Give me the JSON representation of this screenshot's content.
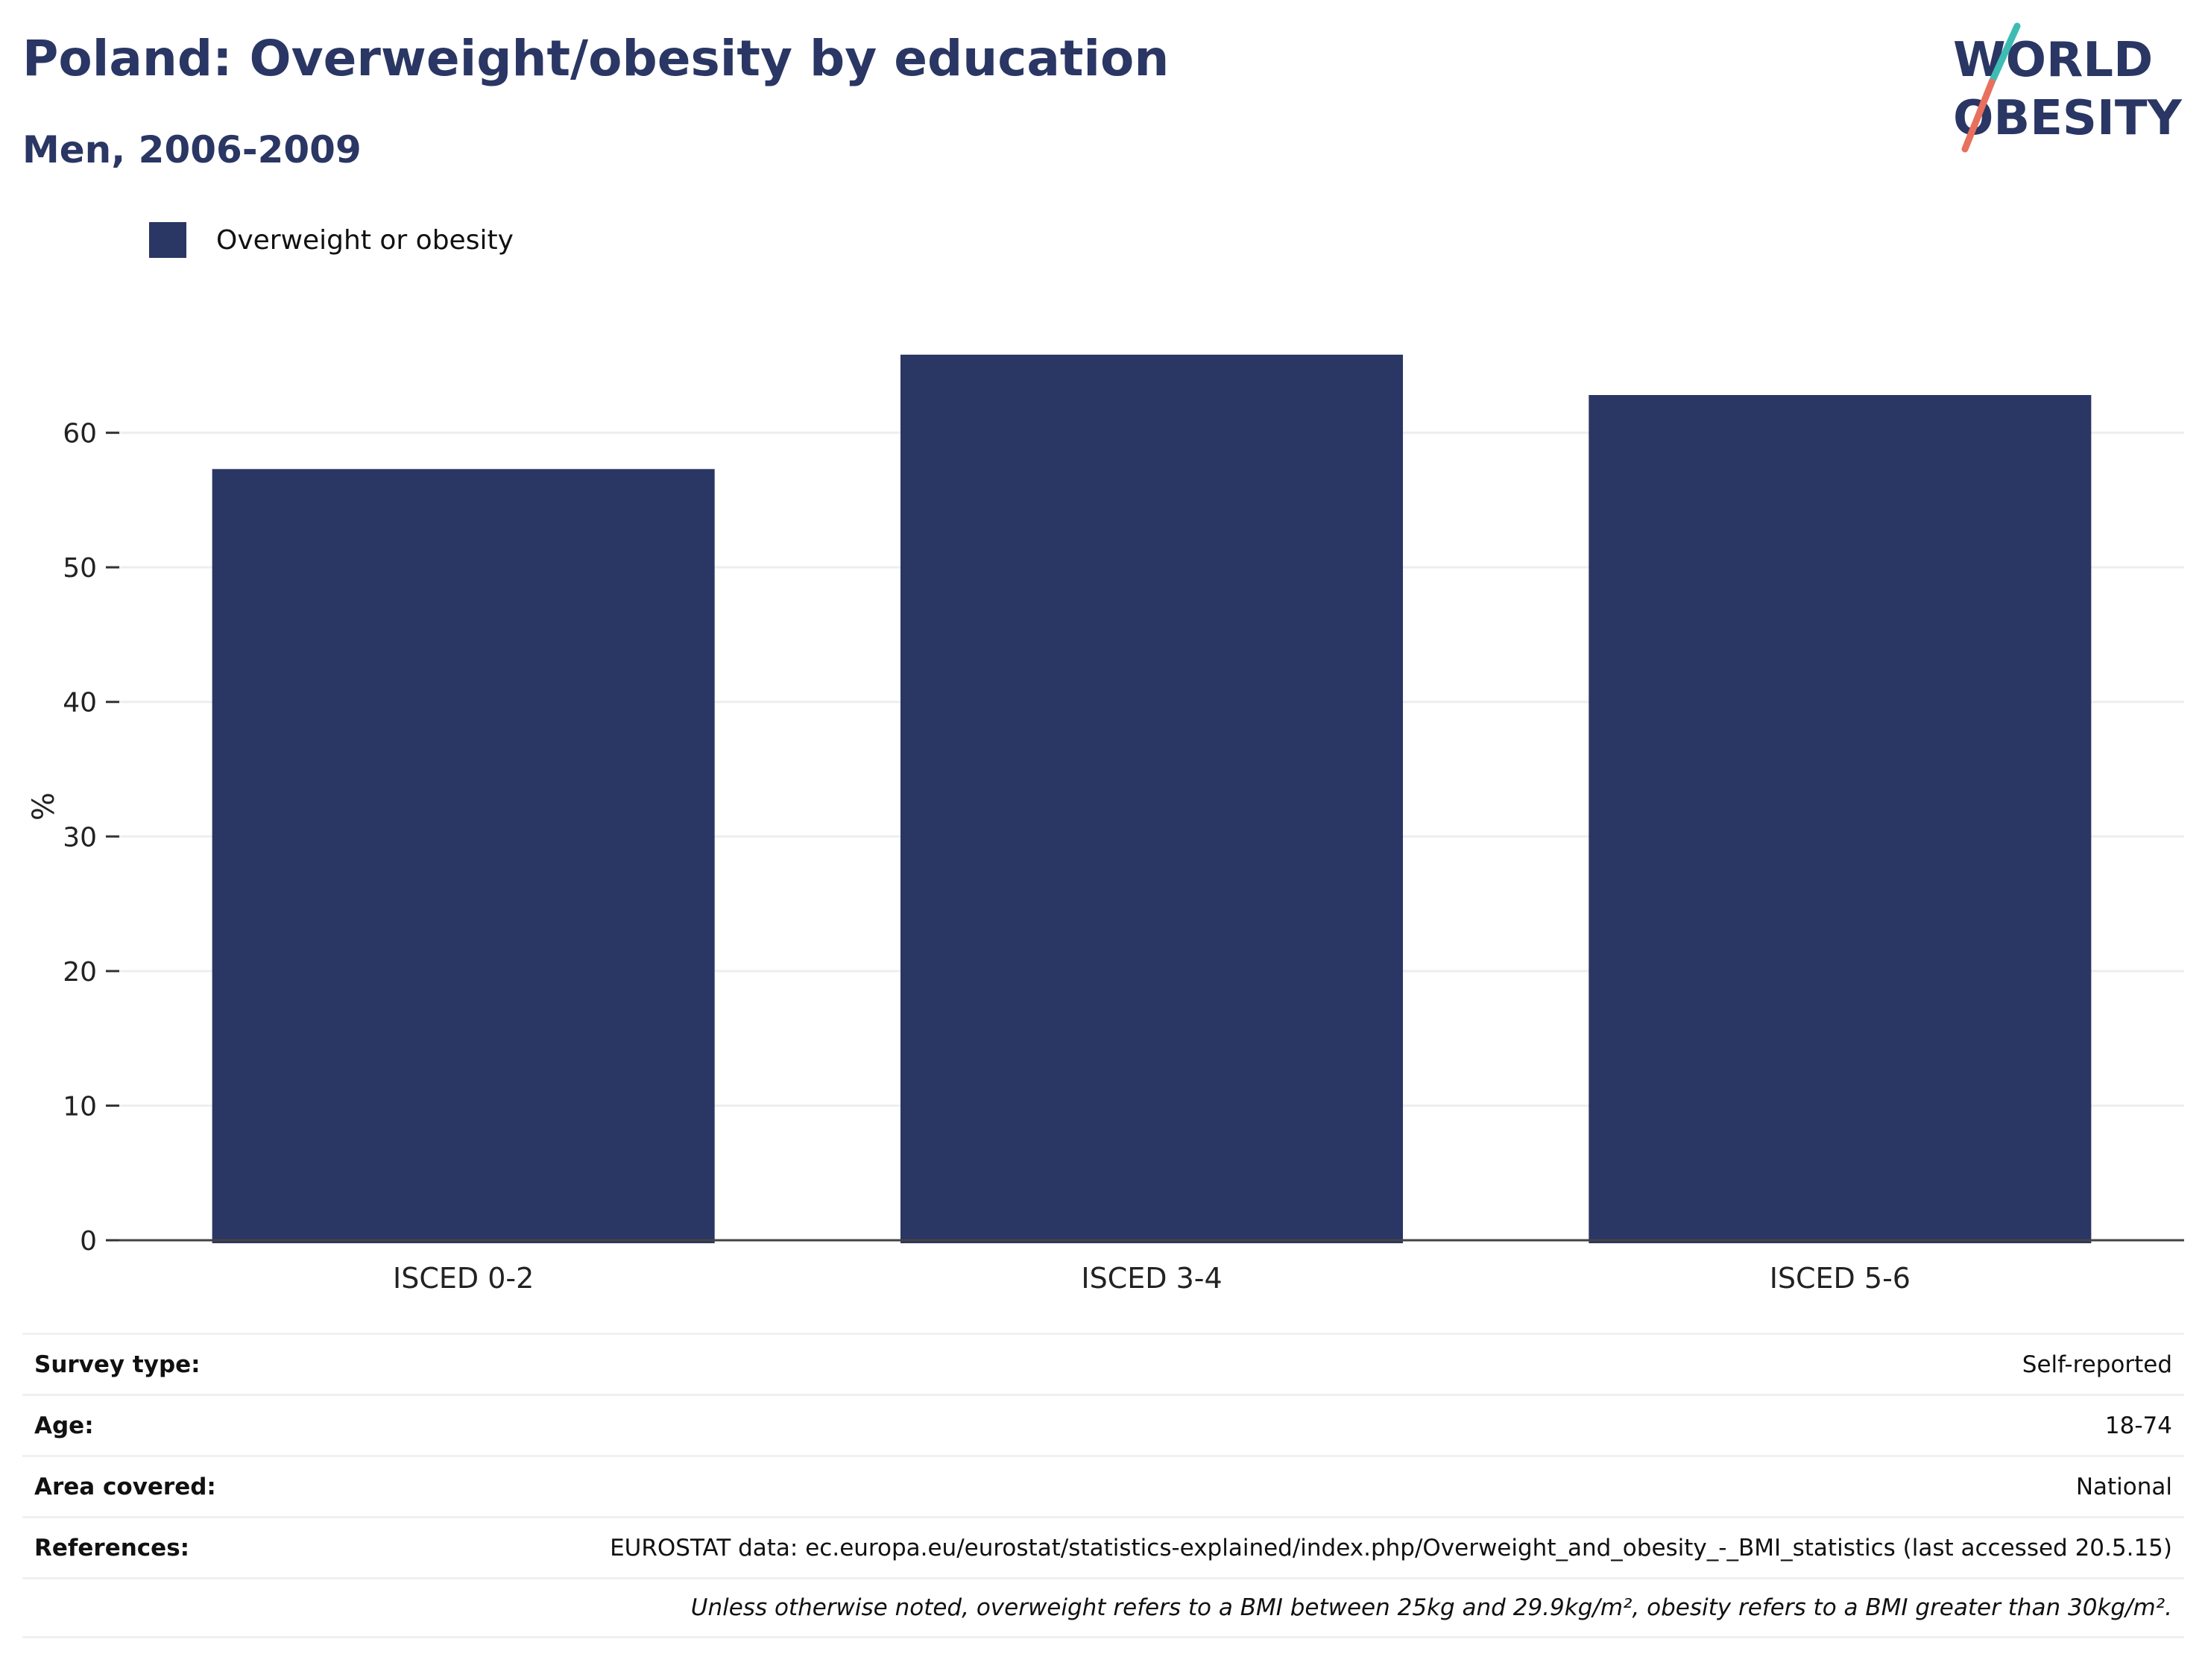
{
  "header": {
    "title": "Poland: Overweight/obesity by education",
    "subtitle": "Men, 2006-2009"
  },
  "logo": {
    "line1": "WORLD",
    "line2": "OBESITY"
  },
  "colors": {
    "bar": "#2a3663",
    "text": "#2a3663",
    "logo_teal": "#3ebcb4",
    "logo_coral": "#e8705c",
    "grid": "#eceef0"
  },
  "legend": {
    "label": "Overweight or obesity"
  },
  "chart_data": {
    "type": "bar",
    "categories": [
      "ISCED 0-2",
      "ISCED 3-4",
      "ISCED 5-6"
    ],
    "series": [
      {
        "name": "Overweight or obesity",
        "values": [
          57.3,
          65.8,
          62.8
        ]
      }
    ],
    "ylabel": "%",
    "ylim": [
      0,
      70
    ],
    "yticks": [
      0,
      10,
      20,
      30,
      40,
      50,
      60
    ],
    "grid": true,
    "legend_position": "top-left"
  },
  "meta": {
    "rows": [
      {
        "label": "Survey type:",
        "value": "Self-reported"
      },
      {
        "label": "Age:",
        "value": "18-74"
      },
      {
        "label": "Area covered:",
        "value": "National"
      },
      {
        "label": "References:",
        "value": "EUROSTAT data: ec.europa.eu/eurostat/statistics-explained/index.php/Overweight_and_obesity_-_BMI_statistics (last accessed 20.5.15)"
      }
    ],
    "note": "Unless otherwise noted, overweight refers to a BMI between 25kg and 29.9kg/m², obesity refers to a BMI greater than 30kg/m²."
  }
}
